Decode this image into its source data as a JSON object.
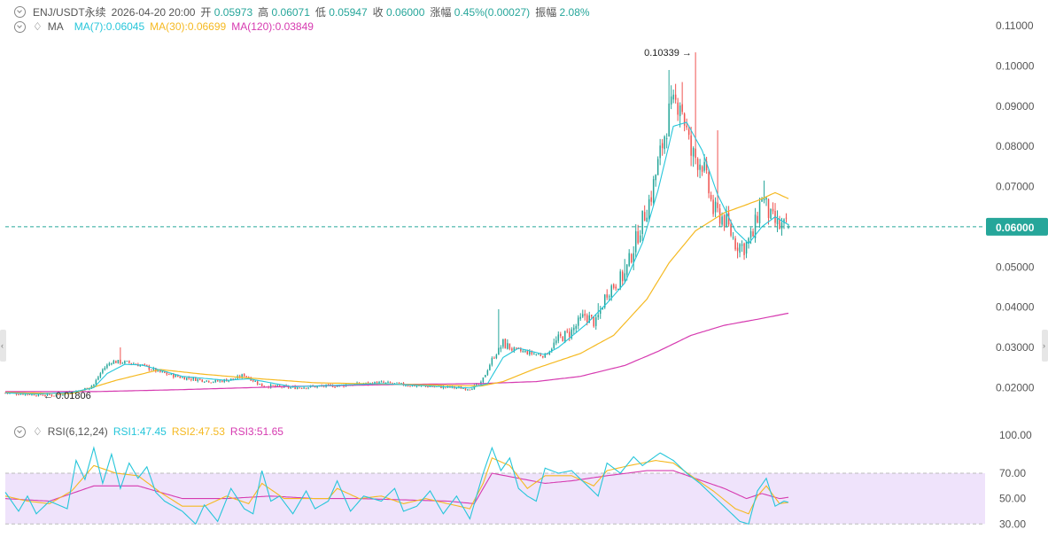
{
  "header": {
    "symbol": "ENJ/USDT永续",
    "datetime": "2026-04-20 20:00",
    "open_label": "开",
    "open": "0.05973",
    "high_label": "高",
    "high": "0.06071",
    "low_label": "低",
    "low": "0.05947",
    "close_label": "收",
    "close": "0.06000",
    "change_label": "涨幅",
    "change": "0.45%(0.00027)",
    "amplitude_label": "振幅",
    "amplitude": "2.08%"
  },
  "ma_legend": {
    "title": "MA",
    "ma7": "MA(7):0.06045",
    "ma30": "MA(30):0.06699",
    "ma120": "MA(120):0.03849"
  },
  "rsi_legend": {
    "title": "RSI(6,12,24)",
    "rsi1": "RSI1:47.45",
    "rsi2": "RSI2:47.53",
    "rsi3": "RSI3:51.65"
  },
  "colors": {
    "up": "#26a69a",
    "down": "#ef5350",
    "ma7": "#26c6da",
    "ma30": "#f5b921",
    "ma120": "#d63ab0",
    "rsi1": "#26c6da",
    "rsi2": "#f5b921",
    "rsi3": "#d63ab0",
    "price_tag": "#26a69a",
    "rsi_band": "#efe3fb"
  },
  "chart_data": [
    {
      "type": "candlestick",
      "ylim": [
        0.017,
        0.112
      ],
      "y_ticks": [
        "0.11000",
        "0.10000",
        "0.09000",
        "0.08000",
        "0.07000",
        "0.06000",
        "0.05000",
        "0.04000",
        "0.03000",
        "0.02000"
      ],
      "y_tick_values": [
        0.11,
        0.1,
        0.09,
        0.08,
        0.07,
        0.06,
        0.05,
        0.04,
        0.03,
        0.02
      ],
      "last_price_label": "0.06000",
      "last_price": 0.06,
      "max_label": "0.10339",
      "max_value": 0.10339,
      "min_label": "0.01806",
      "min_value": 0.01806,
      "grid": false,
      "anchors": {
        "price": [
          [
            0,
            0.0187
          ],
          [
            14,
            0.0183
          ],
          [
            22,
            0.0181
          ],
          [
            28,
            0.0189
          ],
          [
            34,
            0.0191
          ],
          [
            40,
            0.0208
          ],
          [
            44,
            0.0245
          ],
          [
            48,
            0.0265
          ],
          [
            56,
            0.0262
          ],
          [
            62,
            0.0255
          ],
          [
            70,
            0.0238
          ],
          [
            80,
            0.0225
          ],
          [
            95,
            0.0215
          ],
          [
            104,
            0.0222
          ],
          [
            108,
            0.0232
          ],
          [
            116,
            0.0205
          ],
          [
            130,
            0.02
          ],
          [
            150,
            0.0205
          ],
          [
            170,
            0.0212
          ],
          [
            185,
            0.0205
          ],
          [
            200,
            0.0201
          ],
          [
            210,
            0.0198
          ],
          [
            215,
            0.021
          ],
          [
            220,
            0.027
          ],
          [
            225,
            0.031
          ],
          [
            229,
            0.0295
          ],
          [
            238,
            0.0285
          ],
          [
            244,
            0.028
          ],
          [
            250,
            0.032
          ],
          [
            256,
            0.034
          ],
          [
            262,
            0.038
          ],
          [
            267,
            0.036
          ],
          [
            272,
            0.044
          ],
          [
            280,
            0.048
          ],
          [
            287,
            0.06
          ],
          [
            292,
            0.068
          ],
          [
            300,
            0.088
          ],
          [
            305,
            0.092
          ],
          [
            310,
            0.078
          ],
          [
            315,
            0.076
          ],
          [
            320,
            0.064
          ],
          [
            325,
            0.062
          ],
          [
            330,
            0.056
          ],
          [
            334,
            0.055
          ],
          [
            338,
            0.058
          ],
          [
            342,
            0.068
          ],
          [
            346,
            0.062
          ],
          [
            350,
            0.06
          ],
          [
            354,
            0.06
          ]
        ],
        "ma7": [
          [
            0,
            0.0187
          ],
          [
            14,
            0.0184
          ],
          [
            30,
            0.0188
          ],
          [
            40,
            0.02
          ],
          [
            46,
            0.0235
          ],
          [
            54,
            0.0258
          ],
          [
            62,
            0.0256
          ],
          [
            80,
            0.0228
          ],
          [
            100,
            0.0218
          ],
          [
            110,
            0.0222
          ],
          [
            130,
            0.0202
          ],
          [
            170,
            0.021
          ],
          [
            210,
            0.0199
          ],
          [
            218,
            0.021
          ],
          [
            225,
            0.0275
          ],
          [
            232,
            0.0298
          ],
          [
            244,
            0.0282
          ],
          [
            250,
            0.03
          ],
          [
            262,
            0.0355
          ],
          [
            272,
            0.041
          ],
          [
            280,
            0.046
          ],
          [
            288,
            0.056
          ],
          [
            295,
            0.069
          ],
          [
            302,
            0.085
          ],
          [
            308,
            0.086
          ],
          [
            315,
            0.079
          ],
          [
            322,
            0.068
          ],
          [
            330,
            0.059
          ],
          [
            336,
            0.0558
          ],
          [
            342,
            0.06
          ],
          [
            348,
            0.0625
          ],
          [
            354,
            0.0605
          ]
        ],
        "ma30": [
          [
            0,
            0.0188
          ],
          [
            30,
            0.0185
          ],
          [
            50,
            0.0218
          ],
          [
            70,
            0.0245
          ],
          [
            90,
            0.0233
          ],
          [
            110,
            0.0224
          ],
          [
            140,
            0.0212
          ],
          [
            180,
            0.0208
          ],
          [
            215,
            0.0204
          ],
          [
            225,
            0.0215
          ],
          [
            240,
            0.0248
          ],
          [
            260,
            0.0285
          ],
          [
            275,
            0.033
          ],
          [
            290,
            0.042
          ],
          [
            300,
            0.051
          ],
          [
            312,
            0.059
          ],
          [
            325,
            0.0635
          ],
          [
            340,
            0.0665
          ],
          [
            348,
            0.0685
          ],
          [
            354,
            0.067
          ]
        ],
        "ma120": [
          [
            0,
            0.019
          ],
          [
            40,
            0.019
          ],
          [
            80,
            0.0195
          ],
          [
            130,
            0.0203
          ],
          [
            180,
            0.0208
          ],
          [
            215,
            0.021
          ],
          [
            240,
            0.0215
          ],
          [
            260,
            0.0228
          ],
          [
            280,
            0.0255
          ],
          [
            295,
            0.029
          ],
          [
            310,
            0.033
          ],
          [
            325,
            0.0355
          ],
          [
            340,
            0.037
          ],
          [
            354,
            0.0385
          ]
        ]
      },
      "spikes": [
        {
          "i": 52,
          "high": 0.03
        },
        {
          "i": 223,
          "high": 0.0395
        },
        {
          "i": 268,
          "high": 0.041
        },
        {
          "i": 280,
          "high": 0.052
        },
        {
          "i": 300,
          "high": 0.099
        },
        {
          "i": 306,
          "high": 0.096
        },
        {
          "i": 312,
          "high": 0.10339,
          "low": 0.088
        },
        {
          "i": 322,
          "high": 0.084
        },
        {
          "i": 343,
          "high": 0.0715
        }
      ]
    },
    {
      "type": "line",
      "title": "RSI(6,12,24)",
      "ylim": [
        26,
        100
      ],
      "y_ticks": [
        "100.00",
        "70.00",
        "50.00",
        "30.00"
      ],
      "y_tick_values": [
        100,
        70,
        50,
        30
      ],
      "band": [
        30,
        70
      ],
      "anchors": {
        "rsi1": [
          [
            0,
            55
          ],
          [
            6,
            40
          ],
          [
            10,
            52
          ],
          [
            14,
            38
          ],
          [
            20,
            48
          ],
          [
            28,
            42
          ],
          [
            32,
            80
          ],
          [
            36,
            65
          ],
          [
            40,
            90
          ],
          [
            44,
            62
          ],
          [
            48,
            85
          ],
          [
            52,
            58
          ],
          [
            56,
            78
          ],
          [
            60,
            66
          ],
          [
            64,
            75
          ],
          [
            68,
            55
          ],
          [
            72,
            48
          ],
          [
            80,
            40
          ],
          [
            86,
            30
          ],
          [
            90,
            45
          ],
          [
            96,
            32
          ],
          [
            102,
            58
          ],
          [
            108,
            42
          ],
          [
            112,
            38
          ],
          [
            116,
            72
          ],
          [
            120,
            48
          ],
          [
            124,
            52
          ],
          [
            130,
            38
          ],
          [
            136,
            56
          ],
          [
            140,
            42
          ],
          [
            146,
            48
          ],
          [
            150,
            64
          ],
          [
            156,
            40
          ],
          [
            162,
            52
          ],
          [
            170,
            48
          ],
          [
            176,
            58
          ],
          [
            180,
            40
          ],
          [
            186,
            44
          ],
          [
            192,
            56
          ],
          [
            198,
            38
          ],
          [
            204,
            52
          ],
          [
            210,
            34
          ],
          [
            216,
            70
          ],
          [
            220,
            90
          ],
          [
            224,
            72
          ],
          [
            228,
            82
          ],
          [
            232,
            58
          ],
          [
            236,
            52
          ],
          [
            240,
            48
          ],
          [
            244,
            74
          ],
          [
            250,
            70
          ],
          [
            256,
            72
          ],
          [
            262,
            62
          ],
          [
            268,
            52
          ],
          [
            272,
            78
          ],
          [
            278,
            70
          ],
          [
            284,
            83
          ],
          [
            288,
            76
          ],
          [
            296,
            86
          ],
          [
            302,
            80
          ],
          [
            308,
            70
          ],
          [
            314,
            62
          ],
          [
            320,
            52
          ],
          [
            326,
            42
          ],
          [
            332,
            32
          ],
          [
            336,
            30
          ],
          [
            340,
            56
          ],
          [
            344,
            66
          ],
          [
            348,
            44
          ],
          [
            352,
            48
          ],
          [
            354,
            47
          ]
        ],
        "rsi2": [
          [
            0,
            52
          ],
          [
            10,
            48
          ],
          [
            20,
            46
          ],
          [
            30,
            56
          ],
          [
            40,
            76
          ],
          [
            50,
            70
          ],
          [
            60,
            68
          ],
          [
            70,
            55
          ],
          [
            80,
            44
          ],
          [
            90,
            44
          ],
          [
            100,
            52
          ],
          [
            110,
            46
          ],
          [
            116,
            62
          ],
          [
            126,
            50
          ],
          [
            136,
            50
          ],
          [
            146,
            50
          ],
          [
            150,
            58
          ],
          [
            160,
            50
          ],
          [
            170,
            52
          ],
          [
            180,
            46
          ],
          [
            190,
            50
          ],
          [
            200,
            46
          ],
          [
            210,
            42
          ],
          [
            216,
            62
          ],
          [
            220,
            82
          ],
          [
            228,
            76
          ],
          [
            236,
            58
          ],
          [
            244,
            68
          ],
          [
            256,
            68
          ],
          [
            266,
            60
          ],
          [
            272,
            72
          ],
          [
            282,
            76
          ],
          [
            294,
            80
          ],
          [
            302,
            78
          ],
          [
            310,
            68
          ],
          [
            320,
            56
          ],
          [
            330,
            42
          ],
          [
            336,
            38
          ],
          [
            340,
            52
          ],
          [
            344,
            60
          ],
          [
            350,
            46
          ],
          [
            354,
            47
          ]
        ],
        "rsi3": [
          [
            0,
            50
          ],
          [
            20,
            48
          ],
          [
            40,
            60
          ],
          [
            60,
            60
          ],
          [
            80,
            50
          ],
          [
            100,
            50
          ],
          [
            120,
            52
          ],
          [
            140,
            50
          ],
          [
            160,
            50
          ],
          [
            180,
            49
          ],
          [
            200,
            48
          ],
          [
            212,
            46
          ],
          [
            220,
            70
          ],
          [
            232,
            66
          ],
          [
            244,
            62
          ],
          [
            256,
            64
          ],
          [
            272,
            68
          ],
          [
            290,
            72
          ],
          [
            302,
            72
          ],
          [
            315,
            64
          ],
          [
            325,
            58
          ],
          [
            335,
            50
          ],
          [
            342,
            54
          ],
          [
            350,
            50
          ],
          [
            354,
            51
          ]
        ]
      }
    }
  ]
}
